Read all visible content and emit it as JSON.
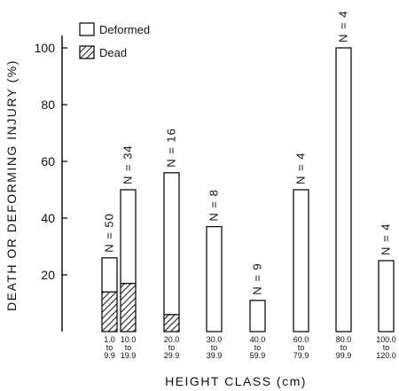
{
  "chart_data": {
    "type": "bar",
    "stacked": true,
    "categories": [
      [
        "1.0",
        "to",
        "9.9"
      ],
      [
        "10.0",
        "to",
        "19.9"
      ],
      [
        "20.0",
        "to",
        "29.9"
      ],
      [
        "30.0",
        "to",
        "39.9"
      ],
      [
        "40.0",
        "to",
        "59.9"
      ],
      [
        "60.0",
        "to",
        "79.9"
      ],
      [
        "80.0",
        "to",
        "99.9"
      ],
      [
        "100.0",
        "to",
        "120.0"
      ]
    ],
    "series": [
      {
        "name": "Dead",
        "pattern": "hatched",
        "values": [
          14,
          17,
          6,
          0,
          0,
          0,
          0,
          0
        ]
      },
      {
        "name": "Deformed",
        "pattern": "open",
        "values": [
          12,
          33,
          50,
          37,
          11,
          50,
          100,
          25
        ]
      }
    ],
    "n_labels": [
      "N = 50",
      "N = 34",
      "N = 16",
      "N = 8",
      "N = 9",
      "N = 4",
      "N = 4",
      "N = 4"
    ],
    "xlabel": "HEIGHT CLASS (cm)",
    "ylabel": "DEATH OR DEFORMING INJURY (%)",
    "ylim": [
      0,
      100
    ],
    "yticks": [
      20,
      40,
      60,
      80,
      100
    ],
    "legend_position": "top-left",
    "grid": false
  }
}
